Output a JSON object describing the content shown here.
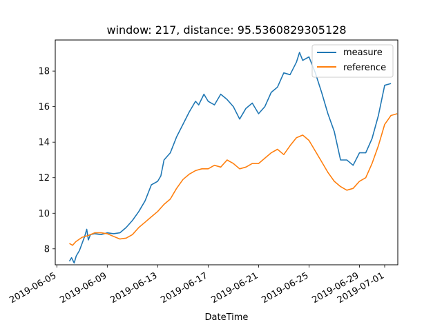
{
  "chart_data": {
    "type": "line",
    "title": "window: 217, distance: 95.5360829305128",
    "xlabel": "DateTime",
    "ylabel": "",
    "x_is_date": true,
    "xlim": [
      "2019-06-04T21:00",
      "2019-07-02T01:00"
    ],
    "ylim": [
      7.1,
      19.75
    ],
    "x_tick_labels": [
      "2019-06-05",
      "2019-06-09",
      "2019-06-13",
      "2019-06-17",
      "2019-06-21",
      "2019-06-25",
      "2019-06-29",
      "2019-07-01"
    ],
    "y_tick_labels": [
      "8",
      "10",
      "12",
      "14",
      "16",
      "18"
    ],
    "y_ticks": [
      8,
      10,
      12,
      14,
      16,
      18
    ],
    "grid": false,
    "legend_position": "upper right",
    "colors": {
      "measure": "#1f77b4",
      "reference": "#ff7f0e"
    },
    "series": [
      {
        "name": "measure",
        "points": [
          [
            "2019-06-06T00:00",
            7.3
          ],
          [
            "2019-06-06T04:00",
            7.5
          ],
          [
            "2019-06-06T09:00",
            7.2
          ],
          [
            "2019-06-06T13:00",
            7.6
          ],
          [
            "2019-06-06T19:00",
            7.9
          ],
          [
            "2019-06-07T00:00",
            8.3
          ],
          [
            "2019-06-07T05:00",
            8.7
          ],
          [
            "2019-06-07T09:00",
            9.1
          ],
          [
            "2019-06-07T12:00",
            8.5
          ],
          [
            "2019-06-07T16:00",
            8.8
          ],
          [
            "2019-06-08T00:00",
            8.85
          ],
          [
            "2019-06-08T12:00",
            8.8
          ],
          [
            "2019-06-09T00:00",
            8.9
          ],
          [
            "2019-06-09T12:00",
            8.85
          ],
          [
            "2019-06-10T00:00",
            8.9
          ],
          [
            "2019-06-10T12:00",
            9.2
          ],
          [
            "2019-06-11T00:00",
            9.6
          ],
          [
            "2019-06-11T12:00",
            10.1
          ],
          [
            "2019-06-12T00:00",
            10.7
          ],
          [
            "2019-06-12T12:00",
            11.6
          ],
          [
            "2019-06-13T00:00",
            11.8
          ],
          [
            "2019-06-13T06:00",
            12.1
          ],
          [
            "2019-06-13T12:00",
            13.0
          ],
          [
            "2019-06-14T00:00",
            13.4
          ],
          [
            "2019-06-14T12:00",
            14.3
          ],
          [
            "2019-06-15T00:00",
            15.0
          ],
          [
            "2019-06-15T12:00",
            15.7
          ],
          [
            "2019-06-16T00:00",
            16.3
          ],
          [
            "2019-06-16T06:00",
            16.1
          ],
          [
            "2019-06-16T16:00",
            16.7
          ],
          [
            "2019-06-17T00:00",
            16.3
          ],
          [
            "2019-06-17T12:00",
            16.1
          ],
          [
            "2019-06-18T00:00",
            16.7
          ],
          [
            "2019-06-18T12:00",
            16.4
          ],
          [
            "2019-06-19T00:00",
            16.0
          ],
          [
            "2019-06-19T12:00",
            15.3
          ],
          [
            "2019-06-20T00:00",
            15.9
          ],
          [
            "2019-06-20T12:00",
            16.2
          ],
          [
            "2019-06-21T00:00",
            15.6
          ],
          [
            "2019-06-21T12:00",
            16.0
          ],
          [
            "2019-06-22T00:00",
            16.8
          ],
          [
            "2019-06-22T12:00",
            17.1
          ],
          [
            "2019-06-23T00:00",
            17.9
          ],
          [
            "2019-06-23T12:00",
            17.8
          ],
          [
            "2019-06-24T00:00",
            18.5
          ],
          [
            "2019-06-24T06:00",
            19.05
          ],
          [
            "2019-06-24T12:00",
            18.6
          ],
          [
            "2019-06-25T00:00",
            18.8
          ],
          [
            "2019-06-25T12:00",
            17.9
          ],
          [
            "2019-06-26T00:00",
            16.8
          ],
          [
            "2019-06-26T12:00",
            15.6
          ],
          [
            "2019-06-27T00:00",
            14.6
          ],
          [
            "2019-06-27T12:00",
            13.0
          ],
          [
            "2019-06-28T00:00",
            13.0
          ],
          [
            "2019-06-28T12:00",
            12.7
          ],
          [
            "2019-06-29T00:00",
            13.4
          ],
          [
            "2019-06-29T12:00",
            13.4
          ],
          [
            "2019-06-30T00:00",
            14.2
          ],
          [
            "2019-06-30T12:00",
            15.5
          ],
          [
            "2019-07-01T00:00",
            17.2
          ],
          [
            "2019-07-01T12:00",
            17.3
          ]
        ]
      },
      {
        "name": "reference",
        "points": [
          [
            "2019-06-06T00:00",
            8.3
          ],
          [
            "2019-06-06T06:00",
            8.2
          ],
          [
            "2019-06-06T12:00",
            8.4
          ],
          [
            "2019-06-07T00:00",
            8.65
          ],
          [
            "2019-06-07T12:00",
            8.75
          ],
          [
            "2019-06-08T00:00",
            8.9
          ],
          [
            "2019-06-08T12:00",
            8.9
          ],
          [
            "2019-06-09T00:00",
            8.85
          ],
          [
            "2019-06-09T12:00",
            8.7
          ],
          [
            "2019-06-10T00:00",
            8.55
          ],
          [
            "2019-06-10T12:00",
            8.6
          ],
          [
            "2019-06-11T00:00",
            8.8
          ],
          [
            "2019-06-11T12:00",
            9.2
          ],
          [
            "2019-06-12T00:00",
            9.5
          ],
          [
            "2019-06-12T12:00",
            9.8
          ],
          [
            "2019-06-13T00:00",
            10.1
          ],
          [
            "2019-06-13T12:00",
            10.5
          ],
          [
            "2019-06-14T00:00",
            10.8
          ],
          [
            "2019-06-14T12:00",
            11.4
          ],
          [
            "2019-06-15T00:00",
            11.9
          ],
          [
            "2019-06-15T12:00",
            12.2
          ],
          [
            "2019-06-16T00:00",
            12.4
          ],
          [
            "2019-06-16T12:00",
            12.5
          ],
          [
            "2019-06-17T00:00",
            12.5
          ],
          [
            "2019-06-17T12:00",
            12.7
          ],
          [
            "2019-06-18T00:00",
            12.6
          ],
          [
            "2019-06-18T12:00",
            13.0
          ],
          [
            "2019-06-19T00:00",
            12.8
          ],
          [
            "2019-06-19T12:00",
            12.5
          ],
          [
            "2019-06-20T00:00",
            12.6
          ],
          [
            "2019-06-20T12:00",
            12.8
          ],
          [
            "2019-06-21T00:00",
            12.8
          ],
          [
            "2019-06-21T12:00",
            13.1
          ],
          [
            "2019-06-22T00:00",
            13.4
          ],
          [
            "2019-06-22T12:00",
            13.6
          ],
          [
            "2019-06-23T00:00",
            13.3
          ],
          [
            "2019-06-23T12:00",
            13.8
          ],
          [
            "2019-06-24T00:00",
            14.25
          ],
          [
            "2019-06-24T12:00",
            14.4
          ],
          [
            "2019-06-25T00:00",
            14.1
          ],
          [
            "2019-06-25T12:00",
            13.5
          ],
          [
            "2019-06-26T00:00",
            12.9
          ],
          [
            "2019-06-26T12:00",
            12.3
          ],
          [
            "2019-06-27T00:00",
            11.8
          ],
          [
            "2019-06-27T12:00",
            11.5
          ],
          [
            "2019-06-28T00:00",
            11.3
          ],
          [
            "2019-06-28T12:00",
            11.4
          ],
          [
            "2019-06-29T00:00",
            11.8
          ],
          [
            "2019-06-29T12:00",
            12.0
          ],
          [
            "2019-06-30T00:00",
            12.8
          ],
          [
            "2019-06-30T12:00",
            13.8
          ],
          [
            "2019-07-01T00:00",
            15.0
          ],
          [
            "2019-07-01T12:00",
            15.5
          ],
          [
            "2019-07-02T00:00",
            15.6
          ]
        ]
      }
    ]
  }
}
